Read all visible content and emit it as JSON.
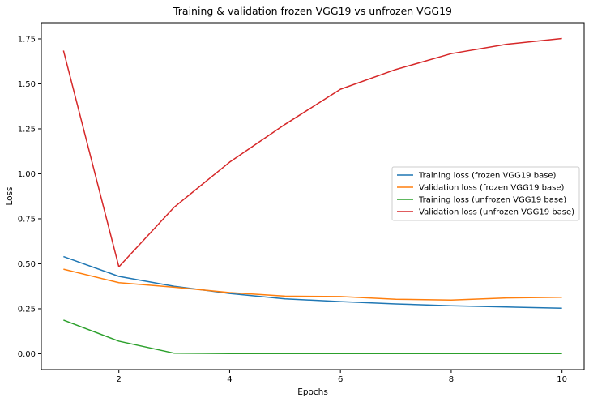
{
  "chart_data": {
    "type": "line",
    "title": "Training & validation frozen VGG19 vs unfrozen VGG19",
    "xlabel": "Epochs",
    "ylabel": "Loss",
    "xlim": [
      0.6,
      10.4
    ],
    "ylim": [
      -0.088,
      1.84
    ],
    "xticks": [
      2,
      4,
      6,
      8,
      10
    ],
    "yticks": [
      0.0,
      0.25,
      0.5,
      0.75,
      1.0,
      1.25,
      1.5,
      1.75
    ],
    "ytick_labels": [
      "0.00",
      "0.25",
      "0.50",
      "0.75",
      "1.00",
      "1.25",
      "1.50",
      "1.75"
    ],
    "grid": false,
    "legend_position": "center-right",
    "x": [
      1,
      2,
      3,
      4,
      5,
      6,
      7,
      8,
      9,
      10
    ],
    "series": [
      {
        "name": "Training loss (frozen VGG19 base)",
        "color": "#1f77b4",
        "values": [
          0.54,
          0.43,
          0.375,
          0.335,
          0.305,
          0.29,
          0.277,
          0.267,
          0.26,
          0.253
        ]
      },
      {
        "name": "Validation loss (frozen VGG19 base)",
        "color": "#ff7f0e",
        "values": [
          0.47,
          0.395,
          0.37,
          0.34,
          0.32,
          0.318,
          0.303,
          0.298,
          0.31,
          0.314
        ]
      },
      {
        "name": "Training loss (unfrozen VGG19 base)",
        "color": "#2ca02c",
        "values": [
          0.187,
          0.07,
          0.003,
          0.001,
          0.001,
          0.001,
          0.001,
          0.001,
          0.001,
          0.001
        ]
      },
      {
        "name": "Validation loss (unfrozen VGG19 base)",
        "color": "#d62728",
        "values": [
          1.685,
          0.483,
          0.815,
          1.065,
          1.275,
          1.47,
          1.58,
          1.668,
          1.72,
          1.752
        ]
      }
    ]
  }
}
